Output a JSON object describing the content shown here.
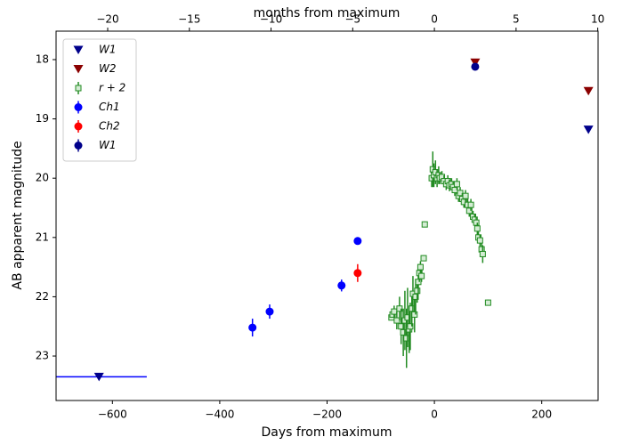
{
  "chart_data": {
    "type": "scatter",
    "xlabel": "Days from maximum",
    "ylabel": "AB apparent magnitude",
    "x2label": "months from maximum",
    "xlim": [
      -705,
      305
    ],
    "xticks": [
      {
        "value": -600,
        "label": "−600"
      },
      {
        "value": -400,
        "label": "−400"
      },
      {
        "value": -200,
        "label": "−200"
      },
      0,
      200
    ],
    "x2lim": [
      -23.16,
      10.02
    ],
    "x2ticks": [
      {
        "value": -20,
        "label": "−20"
      },
      {
        "value": -15,
        "label": "−15"
      },
      {
        "value": -10,
        "label": "−10"
      },
      {
        "value": -5,
        "label": "−5"
      },
      0,
      5,
      10
    ],
    "ylim": [
      23.75,
      17.52
    ],
    "yticks": [
      18,
      19,
      20,
      21,
      22,
      23
    ],
    "legend": "upper left",
    "series": [
      {
        "name": "W1",
        "marker": "triangle_down",
        "color": "#00008b",
        "x": [
          -625,
          287
        ],
        "values": [
          23.35,
          19.18
        ],
        "xerr": [
          89,
          null
        ],
        "xerr_color": "#0000ff"
      },
      {
        "name": "W2",
        "marker": "triangle_down",
        "color": "#8b0000",
        "x": [
          76,
          287
        ],
        "values": [
          18.05,
          18.53
        ]
      },
      {
        "name": "r + 2",
        "marker": "square_open",
        "color": "#228b22",
        "x": [
          -80,
          -78,
          -75,
          -70,
          -65,
          -62,
          -58,
          -55,
          -52,
          -50,
          -47,
          -45,
          -42,
          -40,
          -37,
          -35,
          -32,
          -30,
          -28,
          -26,
          -24,
          -20,
          -18,
          -5,
          -3,
          -1,
          2,
          5,
          8,
          10,
          14,
          18,
          22,
          25,
          28,
          32,
          35,
          38,
          42,
          45,
          48,
          52,
          55,
          58,
          62,
          65,
          68,
          72,
          75,
          78,
          80,
          82,
          85,
          88,
          90,
          100
        ],
        "values": [
          22.35,
          22.3,
          22.25,
          22.4,
          22.2,
          22.5,
          22.6,
          22.4,
          22.7,
          22.35,
          22.55,
          22.5,
          22.2,
          21.95,
          22.3,
          22.0,
          21.9,
          21.75,
          21.6,
          21.5,
          21.65,
          21.35,
          20.78,
          20.0,
          19.85,
          19.95,
          19.9,
          20.0,
          19.95,
          20.0,
          19.98,
          20.05,
          20.1,
          20.05,
          20.12,
          20.1,
          20.15,
          20.2,
          20.1,
          20.3,
          20.25,
          20.35,
          20.4,
          20.3,
          20.45,
          20.55,
          20.45,
          20.65,
          20.7,
          20.75,
          20.85,
          21.0,
          21.05,
          21.2,
          21.28,
          22.1
        ],
        "yerr": [
          0.05,
          0.05,
          0.1,
          0.15,
          0.2,
          0.3,
          0.4,
          0.5,
          0.5,
          0.5,
          0.4,
          0.4,
          0.3,
          0.3,
          0.3,
          0.3,
          0.2,
          0.2,
          0.15,
          0.1,
          0.1,
          0.05,
          0.05,
          0.15,
          0.3,
          0.2,
          0.2,
          0.15,
          0.15,
          0.1,
          0.1,
          0.1,
          0.1,
          0.1,
          0.1,
          0.1,
          0.1,
          0.1,
          0.1,
          0.1,
          0.1,
          0.1,
          0.1,
          0.1,
          0.1,
          0.1,
          0.1,
          0.1,
          0.1,
          0.1,
          0.1,
          0.1,
          0.1,
          0.1,
          0.15,
          0.05
        ]
      },
      {
        "name": "Ch1",
        "marker": "circle",
        "color": "#0000ff",
        "x": [
          -339,
          -307,
          -173,
          -143
        ],
        "values": [
          22.52,
          22.25,
          21.81,
          21.06
        ],
        "yerr": [
          0.15,
          0.12,
          0.1,
          0.05
        ]
      },
      {
        "name": "Ch2",
        "marker": "circle",
        "color": "#ff0000",
        "x": [
          -143
        ],
        "values": [
          21.6
        ],
        "yerr": [
          0.15
        ]
      },
      {
        "name": "W1",
        "marker": "circle",
        "color": "#00008b",
        "x": [
          76
        ],
        "values": [
          18.12
        ],
        "yerr": [
          0.05
        ]
      }
    ]
  }
}
